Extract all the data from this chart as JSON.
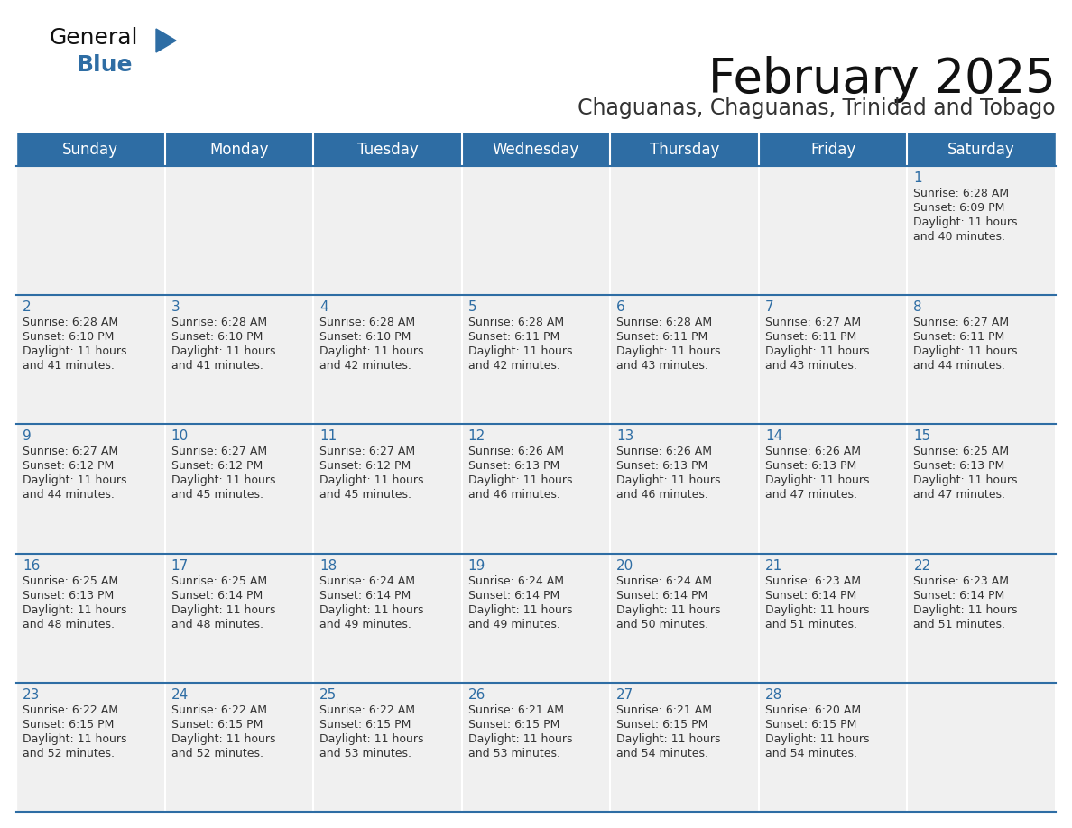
{
  "title": "February 2025",
  "subtitle": "Chaguanas, Chaguanas, Trinidad and Tobago",
  "header_bg": "#2E6DA4",
  "header_text_color": "#FFFFFF",
  "cell_bg": "#F0F0F0",
  "cell_bg_white": "#FFFFFF",
  "background_color": "#FFFFFF",
  "day_number_color": "#2E6DA4",
  "info_text_color": "#333333",
  "border_color": "#2E6DA4",
  "days_of_week": [
    "Sunday",
    "Monday",
    "Tuesday",
    "Wednesday",
    "Thursday",
    "Friday",
    "Saturday"
  ],
  "weeks": [
    [
      {
        "day": null,
        "info": ""
      },
      {
        "day": null,
        "info": ""
      },
      {
        "day": null,
        "info": ""
      },
      {
        "day": null,
        "info": ""
      },
      {
        "day": null,
        "info": ""
      },
      {
        "day": null,
        "info": ""
      },
      {
        "day": 1,
        "info": "Sunrise: 6:28 AM\nSunset: 6:09 PM\nDaylight: 11 hours\nand 40 minutes."
      }
    ],
    [
      {
        "day": 2,
        "info": "Sunrise: 6:28 AM\nSunset: 6:10 PM\nDaylight: 11 hours\nand 41 minutes."
      },
      {
        "day": 3,
        "info": "Sunrise: 6:28 AM\nSunset: 6:10 PM\nDaylight: 11 hours\nand 41 minutes."
      },
      {
        "day": 4,
        "info": "Sunrise: 6:28 AM\nSunset: 6:10 PM\nDaylight: 11 hours\nand 42 minutes."
      },
      {
        "day": 5,
        "info": "Sunrise: 6:28 AM\nSunset: 6:11 PM\nDaylight: 11 hours\nand 42 minutes."
      },
      {
        "day": 6,
        "info": "Sunrise: 6:28 AM\nSunset: 6:11 PM\nDaylight: 11 hours\nand 43 minutes."
      },
      {
        "day": 7,
        "info": "Sunrise: 6:27 AM\nSunset: 6:11 PM\nDaylight: 11 hours\nand 43 minutes."
      },
      {
        "day": 8,
        "info": "Sunrise: 6:27 AM\nSunset: 6:11 PM\nDaylight: 11 hours\nand 44 minutes."
      }
    ],
    [
      {
        "day": 9,
        "info": "Sunrise: 6:27 AM\nSunset: 6:12 PM\nDaylight: 11 hours\nand 44 minutes."
      },
      {
        "day": 10,
        "info": "Sunrise: 6:27 AM\nSunset: 6:12 PM\nDaylight: 11 hours\nand 45 minutes."
      },
      {
        "day": 11,
        "info": "Sunrise: 6:27 AM\nSunset: 6:12 PM\nDaylight: 11 hours\nand 45 minutes."
      },
      {
        "day": 12,
        "info": "Sunrise: 6:26 AM\nSunset: 6:13 PM\nDaylight: 11 hours\nand 46 minutes."
      },
      {
        "day": 13,
        "info": "Sunrise: 6:26 AM\nSunset: 6:13 PM\nDaylight: 11 hours\nand 46 minutes."
      },
      {
        "day": 14,
        "info": "Sunrise: 6:26 AM\nSunset: 6:13 PM\nDaylight: 11 hours\nand 47 minutes."
      },
      {
        "day": 15,
        "info": "Sunrise: 6:25 AM\nSunset: 6:13 PM\nDaylight: 11 hours\nand 47 minutes."
      }
    ],
    [
      {
        "day": 16,
        "info": "Sunrise: 6:25 AM\nSunset: 6:13 PM\nDaylight: 11 hours\nand 48 minutes."
      },
      {
        "day": 17,
        "info": "Sunrise: 6:25 AM\nSunset: 6:14 PM\nDaylight: 11 hours\nand 48 minutes."
      },
      {
        "day": 18,
        "info": "Sunrise: 6:24 AM\nSunset: 6:14 PM\nDaylight: 11 hours\nand 49 minutes."
      },
      {
        "day": 19,
        "info": "Sunrise: 6:24 AM\nSunset: 6:14 PM\nDaylight: 11 hours\nand 49 minutes."
      },
      {
        "day": 20,
        "info": "Sunrise: 6:24 AM\nSunset: 6:14 PM\nDaylight: 11 hours\nand 50 minutes."
      },
      {
        "day": 21,
        "info": "Sunrise: 6:23 AM\nSunset: 6:14 PM\nDaylight: 11 hours\nand 51 minutes."
      },
      {
        "day": 22,
        "info": "Sunrise: 6:23 AM\nSunset: 6:14 PM\nDaylight: 11 hours\nand 51 minutes."
      }
    ],
    [
      {
        "day": 23,
        "info": "Sunrise: 6:22 AM\nSunset: 6:15 PM\nDaylight: 11 hours\nand 52 minutes."
      },
      {
        "day": 24,
        "info": "Sunrise: 6:22 AM\nSunset: 6:15 PM\nDaylight: 11 hours\nand 52 minutes."
      },
      {
        "day": 25,
        "info": "Sunrise: 6:22 AM\nSunset: 6:15 PM\nDaylight: 11 hours\nand 53 minutes."
      },
      {
        "day": 26,
        "info": "Sunrise: 6:21 AM\nSunset: 6:15 PM\nDaylight: 11 hours\nand 53 minutes."
      },
      {
        "day": 27,
        "info": "Sunrise: 6:21 AM\nSunset: 6:15 PM\nDaylight: 11 hours\nand 54 minutes."
      },
      {
        "day": 28,
        "info": "Sunrise: 6:20 AM\nSunset: 6:15 PM\nDaylight: 11 hours\nand 54 minutes."
      },
      {
        "day": null,
        "info": ""
      }
    ]
  ],
  "logo_general_color": "#111111",
  "logo_blue_color": "#2E6DA4",
  "logo_triangle_color": "#2E6DA4",
  "title_fontsize": 38,
  "subtitle_fontsize": 17,
  "header_fontsize": 12,
  "day_number_fontsize": 11,
  "info_fontsize": 9
}
